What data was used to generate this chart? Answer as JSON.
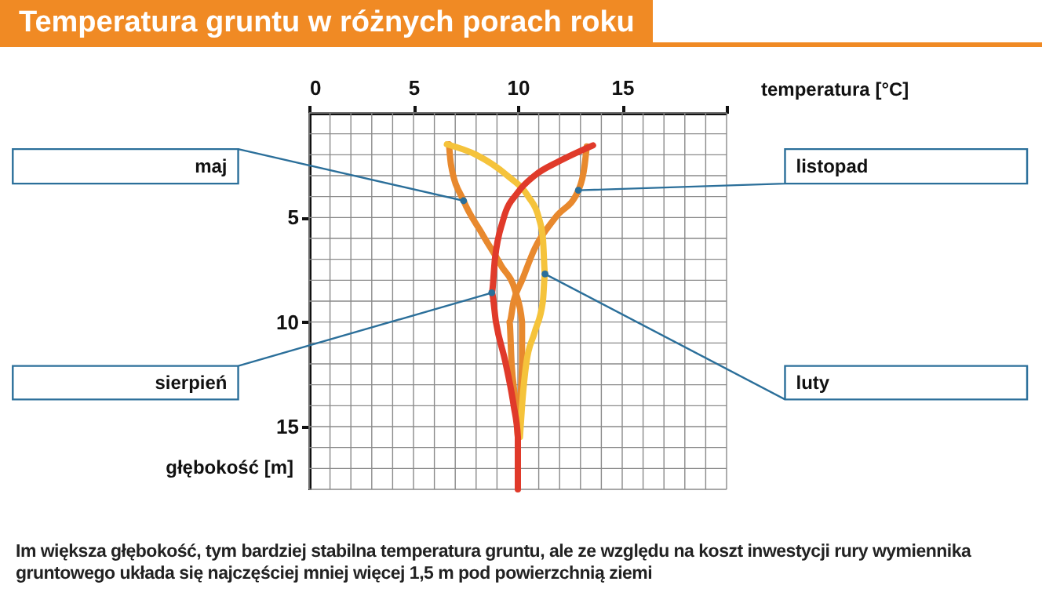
{
  "chart_data": {
    "type": "line",
    "title": "Temperatura gruntu w różnych porach roku",
    "xlabel": "temperatura [°C]",
    "ylabel": "głębokość [m]",
    "annotations": [
      {
        "text": "maj",
        "x": 7.4,
        "y": 4.2
      },
      {
        "text": "listopad",
        "x": 12.9,
        "y": 3.7
      },
      {
        "text": "luty",
        "x": 11.3,
        "y": 7.7
      },
      {
        "text": "sierpień",
        "x": 8.75,
        "y": 8.6
      },
      "Im większa głębokość, tym bardziej stabilna temperatura gruntu, ale ze względu na koszt inwestycji rury wymiennika gruntowego układa się najczęściej mniej więcej 1,5 m pod powierzchnią ziemi"
    ],
    "xlim": [
      0,
      20
    ],
    "xticks": [
      0,
      5,
      10,
      15,
      {
        "value": 20,
        "label": null
      }
    ],
    "ylim": [
      18,
      0
    ],
    "yticks": [
      5,
      10,
      15
    ],
    "grid": true,
    "series": [
      {
        "color": "#e8892e",
        "x": [
          6.7,
          6.8,
          7.4,
          8.3,
          9.2,
          9.9,
          10.2,
          10.2,
          10.1,
          10
        ],
        "values": [
          1.5,
          2.5,
          4.2,
          5.8,
          7.3,
          8.6,
          10,
          12,
          14,
          15.5
        ]
      },
      {
        "color": "#e8892e",
        "x": [
          13.3,
          13.2,
          12.9,
          11.8,
          10.8,
          10.2,
          9.8,
          9.6,
          9.7,
          9.9,
          10
        ],
        "values": [
          1.6,
          2.5,
          3.7,
          5,
          6.5,
          8,
          9,
          10,
          12,
          14,
          15.5
        ]
      },
      {
        "color": "#f5c33b",
        "x": [
          6.6,
          8,
          9.5,
          10.5,
          11,
          11.2,
          11.3,
          11.2,
          10.8,
          10.4,
          10.2,
          10.1
        ],
        "values": [
          1.5,
          2,
          3,
          4,
          5,
          6,
          7.7,
          9,
          10.5,
          12,
          14,
          15.5
        ]
      },
      {
        "color": "#e03a2a",
        "x": [
          13.6,
          12,
          10.8,
          10,
          9.3,
          8.9,
          8.75,
          8.95,
          9.4,
          9.8,
          10,
          10
        ],
        "values": [
          1.55,
          2.3,
          3,
          3.8,
          5.1,
          7,
          8.6,
          10,
          11.9,
          14,
          15.5,
          18
        ]
      }
    ]
  }
}
